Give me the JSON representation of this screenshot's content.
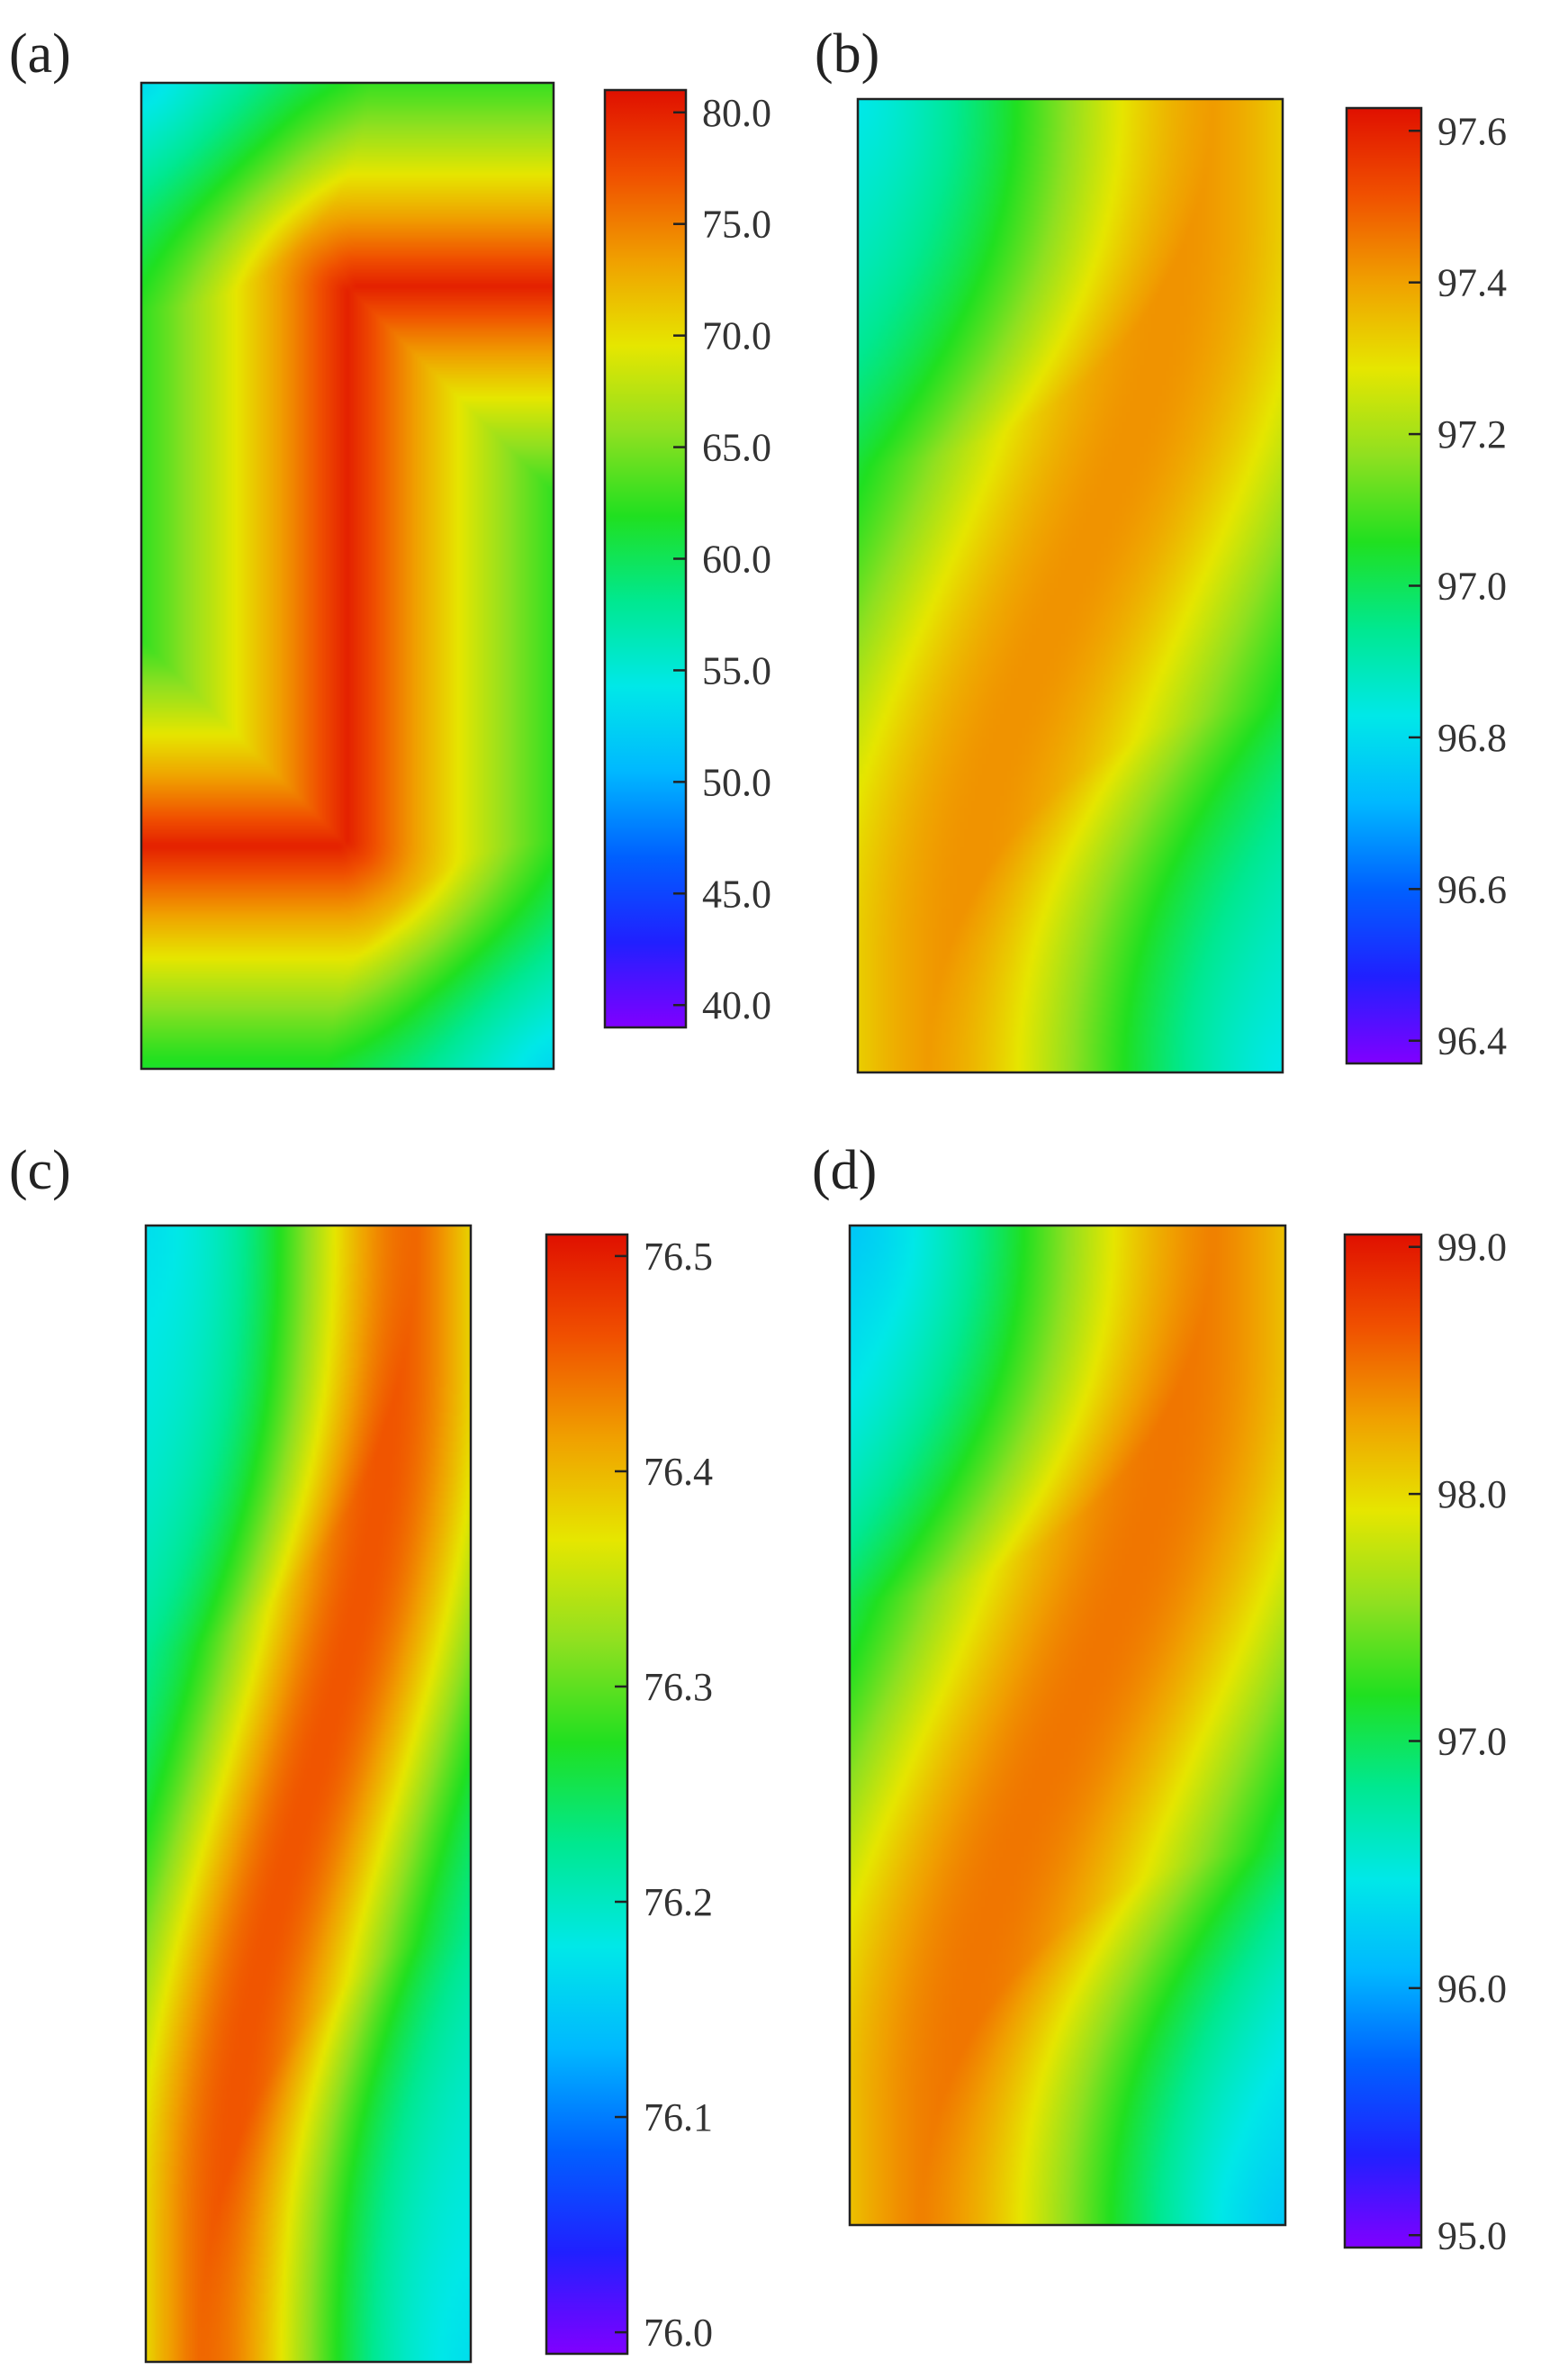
{
  "figure": {
    "panel_labels": [
      "(a)",
      "(b)",
      "(c)",
      "(d)"
    ]
  },
  "colormap": [
    "#8000ff",
    "#2020ff",
    "#0060ff",
    "#00b8ff",
    "#00e8e8",
    "#00e890",
    "#20e020",
    "#90e020",
    "#e6e600",
    "#f0a000",
    "#f05000",
    "#e01000"
  ],
  "chart_data": [
    {
      "type": "heatmap",
      "panel": "(a)",
      "title": "",
      "pattern": "S-shaped band: maximum along a central S-curve, minima at top-left and bottom-right corners",
      "value_range": [
        39.0,
        81.0
      ],
      "approx_max": 80.0,
      "approx_min": 48.0,
      "colorbar": {
        "min": 39.0,
        "max": 81.0,
        "ticks": [
          80.0,
          75.0,
          70.0,
          65.0,
          60.0,
          55.0,
          50.0,
          45.0,
          40.0
        ],
        "tick_labels": [
          "80.0",
          "75.0",
          "70.0",
          "65.0",
          "60.0",
          "55.0",
          "50.0",
          "45.0",
          "40.0"
        ]
      }
    },
    {
      "type": "heatmap",
      "panel": "(b)",
      "title": "",
      "pattern": "broad S-shaped band of maximum values, minima at top-left and bottom-right corners",
      "value_range": [
        96.37,
        97.63
      ],
      "approx_max": 97.42,
      "approx_min": 96.75,
      "colorbar": {
        "min": 96.37,
        "max": 97.63,
        "ticks": [
          97.6,
          97.4,
          97.2,
          97.0,
          96.8,
          96.6,
          96.4
        ],
        "tick_labels": [
          "97.6",
          "97.4",
          "97.2",
          "97.0",
          "96.8",
          "96.6",
          "96.4"
        ]
      }
    },
    {
      "type": "heatmap",
      "panel": "(c)",
      "title": "",
      "pattern": "S-shaped band of maximum values, minima at top-left and bottom-right corners",
      "value_range": [
        75.99,
        76.51
      ],
      "approx_max": 76.46,
      "approx_min": 76.15,
      "colorbar": {
        "min": 75.99,
        "max": 76.51,
        "ticks": [
          76.5,
          76.4,
          76.3,
          76.2,
          76.1,
          76.0
        ],
        "tick_labels": [
          "76.5",
          "76.4",
          "76.3",
          "76.2",
          "76.1",
          "76.0"
        ]
      }
    },
    {
      "type": "heatmap",
      "panel": "(d)",
      "title": "",
      "pattern": "broad S-shaped band of maximum values, minima at top-left and bottom-right corners",
      "value_range": [
        94.95,
        99.05
      ],
      "approx_max": 98.5,
      "approx_min": 95.9,
      "colorbar": {
        "min": 94.95,
        "max": 99.05,
        "ticks": [
          99.0,
          98.0,
          97.0,
          96.0,
          95.0
        ],
        "tick_labels": [
          "99.0",
          "98.0",
          "97.0",
          "96.0",
          "95.0"
        ]
      }
    }
  ]
}
